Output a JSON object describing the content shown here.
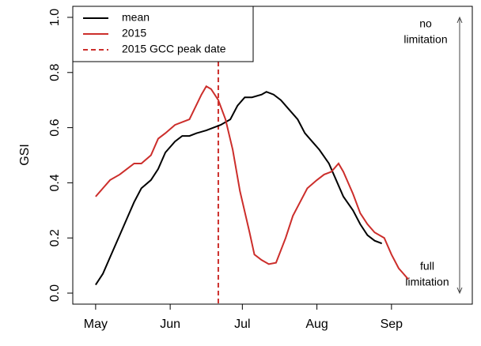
{
  "chart_data": {
    "type": "line",
    "ylabel": "GSI",
    "xlim": [
      111.5,
      277.6
    ],
    "ylim": [
      -0.04,
      1.04
    ],
    "xticks": [
      {
        "value": 121,
        "label": "May"
      },
      {
        "value": 152,
        "label": "Jun"
      },
      {
        "value": 182,
        "label": "Jul"
      },
      {
        "value": 213,
        "label": "Aug"
      },
      {
        "value": 244,
        "label": "Sep"
      }
    ],
    "yticks": [
      {
        "value": 0,
        "label": "0.0"
      },
      0.2,
      0.4,
      0.6,
      0.8,
      {
        "value": 1,
        "label": "1.0"
      }
    ],
    "legend": "top-left",
    "series": [
      {
        "name": "mean",
        "color": "#000000",
        "x": [
          121,
          124,
          127,
          131,
          134,
          137,
          140,
          144,
          147,
          150,
          154,
          157,
          160,
          163,
          167,
          170,
          173,
          177,
          180,
          183,
          186,
          190,
          192,
          195,
          198,
          201,
          205,
          208,
          211,
          214,
          218,
          221,
          224,
          228,
          231,
          234,
          237,
          240
        ],
        "values": [
          0.03,
          0.07,
          0.13,
          0.21,
          0.27,
          0.33,
          0.38,
          0.41,
          0.45,
          0.51,
          0.55,
          0.57,
          0.57,
          0.58,
          0.59,
          0.6,
          0.61,
          0.63,
          0.68,
          0.71,
          0.71,
          0.72,
          0.73,
          0.72,
          0.7,
          0.67,
          0.63,
          0.58,
          0.55,
          0.52,
          0.47,
          0.41,
          0.35,
          0.3,
          0.25,
          0.21,
          0.19,
          0.18
        ]
      },
      {
        "name": "2015",
        "color": "#cc2e2b",
        "x": [
          121,
          124,
          127,
          131,
          134,
          137,
          140,
          144,
          147,
          150,
          154,
          157,
          160,
          165,
          167,
          169,
          172,
          175,
          178,
          181,
          185,
          187,
          190,
          193,
          196,
          200,
          203,
          206,
          209,
          213,
          216,
          219,
          222,
          224,
          228,
          231,
          234,
          237,
          241,
          244,
          247,
          251
        ],
        "values": [
          0.35,
          0.38,
          0.41,
          0.43,
          0.45,
          0.47,
          0.47,
          0.5,
          0.56,
          0.58,
          0.61,
          0.62,
          0.63,
          0.72,
          0.75,
          0.74,
          0.7,
          0.63,
          0.52,
          0.37,
          0.22,
          0.14,
          0.12,
          0.105,
          0.11,
          0.2,
          0.28,
          0.33,
          0.38,
          0.41,
          0.43,
          0.44,
          0.47,
          0.44,
          0.36,
          0.29,
          0.25,
          0.22,
          0.2,
          0.14,
          0.09,
          0.05
        ]
      }
    ],
    "vline": {
      "name": "2015 GCC peak date",
      "x": 172,
      "color": "#cc2e2b",
      "dashed": true
    },
    "annotations": {
      "top": [
        "no",
        "limitation"
      ],
      "bottom": [
        "full",
        "limitation"
      ]
    }
  }
}
